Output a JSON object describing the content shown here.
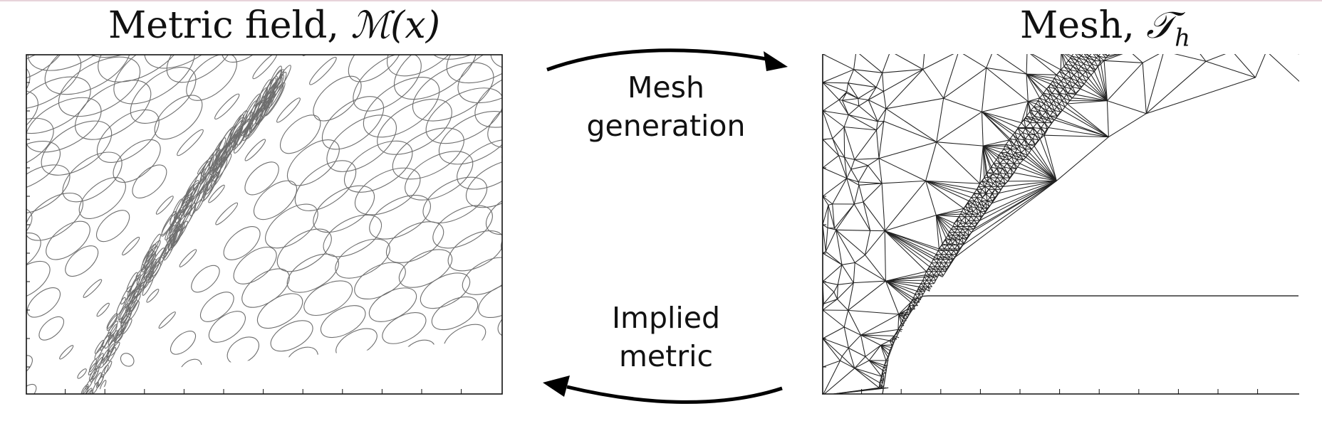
{
  "titles": {
    "metric_field_text": "Metric field, ",
    "metric_field_math": "ℳ(x)",
    "mesh_text": "Mesh, ",
    "mesh_math": "𝒯",
    "mesh_subscript": "h"
  },
  "arrows": {
    "top": {
      "line1": "Mesh",
      "line2": "generation"
    },
    "bottom": {
      "line1": "Implied",
      "line2": "metric"
    }
  },
  "colors": {
    "ellipse_stroke": "#6e6e6e",
    "mesh_stroke": "#222222",
    "frame": "#111111",
    "arrow": "#000000"
  }
}
